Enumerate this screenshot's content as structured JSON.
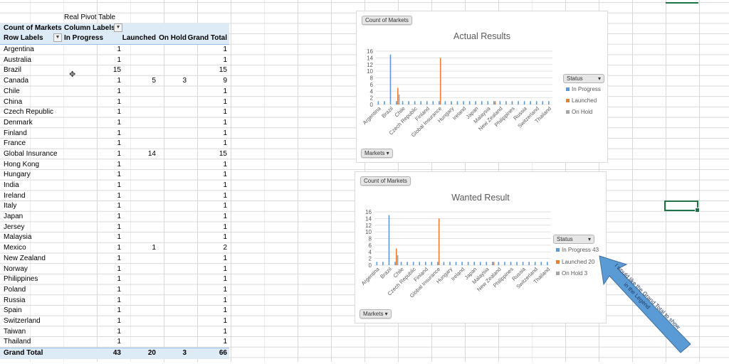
{
  "pivot": {
    "title": "Real Pivot Table",
    "header": {
      "col1": "Count of Markets",
      "col2": "Column Labels"
    },
    "columns": [
      "Row Labels",
      "In Progress",
      "Launched",
      "On Hold",
      "Grand Total"
    ],
    "rows": [
      [
        "Argentina",
        "1",
        "",
        "",
        "1"
      ],
      [
        "Australia",
        "1",
        "",
        "",
        "1"
      ],
      [
        "Brazil",
        "15",
        "",
        "",
        "15"
      ],
      [
        "Canada",
        "1",
        "5",
        "3",
        "9"
      ],
      [
        "Chile",
        "1",
        "",
        "",
        "1"
      ],
      [
        "China",
        "1",
        "",
        "",
        "1"
      ],
      [
        "Czech Republic",
        "1",
        "",
        "",
        "1"
      ],
      [
        "Denmark",
        "1",
        "",
        "",
        "1"
      ],
      [
        "Finland",
        "1",
        "",
        "",
        "1"
      ],
      [
        "France",
        "1",
        "",
        "",
        "1"
      ],
      [
        "Global Insurance",
        "1",
        "14",
        "",
        "15"
      ],
      [
        "Hong Kong",
        "1",
        "",
        "",
        "1"
      ],
      [
        "Hungary",
        "1",
        "",
        "",
        "1"
      ],
      [
        "India",
        "1",
        "",
        "",
        "1"
      ],
      [
        "Ireland",
        "1",
        "",
        "",
        "1"
      ],
      [
        "Italy",
        "1",
        "",
        "",
        "1"
      ],
      [
        "Japan",
        "1",
        "",
        "",
        "1"
      ],
      [
        "Jersey",
        "1",
        "",
        "",
        "1"
      ],
      [
        "Malaysia",
        "1",
        "",
        "",
        "1"
      ],
      [
        "Mexico",
        "1",
        "1",
        "",
        "2"
      ],
      [
        "New Zealand",
        "1",
        "",
        "",
        "1"
      ],
      [
        "Norway",
        "1",
        "",
        "",
        "1"
      ],
      [
        "Philippines",
        "1",
        "",
        "",
        "1"
      ],
      [
        "Poland",
        "1",
        "",
        "",
        "1"
      ],
      [
        "Russia",
        "1",
        "",
        "",
        "1"
      ],
      [
        "Spain",
        "1",
        "",
        "",
        "1"
      ],
      [
        "Switzerland",
        "1",
        "",
        "",
        "1"
      ],
      [
        "Taiwan",
        "1",
        "",
        "",
        "1"
      ],
      [
        "Thailand",
        "1",
        "",
        "",
        "1"
      ]
    ],
    "grand_total": [
      "Grand Total",
      "43",
      "20",
      "3",
      "66"
    ]
  },
  "colors": {
    "in_progress": "#5b9bd5",
    "launched": "#ed7d31",
    "on_hold": "#a5a5a5",
    "callout": "#5b9bd5"
  },
  "chart_data": [
    {
      "type": "bar",
      "title": "Actual Results",
      "field_button": "Count of Markets",
      "axis_button": "Markets",
      "legend_button": "Status",
      "legend": [
        "In Progress",
        "Launched",
        "On Hold"
      ],
      "ylim": [
        0,
        16
      ],
      "yticks": [
        "0",
        "2",
        "4",
        "6",
        "8",
        "10",
        "12",
        "14",
        "16"
      ],
      "xticks": [
        "Argentina",
        "Brazil",
        "Chile",
        "Czech Republic",
        "Finland",
        "Global Insurance",
        "Hungary",
        "Ireland",
        "Japan",
        "Malaysia",
        "New Zealand",
        "Philippines",
        "Russia",
        "Switzerland",
        "Thailand"
      ],
      "categories": [
        "Argentina",
        "Australia",
        "Brazil",
        "Canada",
        "Chile",
        "China",
        "Czech Republic",
        "Denmark",
        "Finland",
        "France",
        "Global Insurance",
        "Hong Kong",
        "Hungary",
        "India",
        "Ireland",
        "Italy",
        "Japan",
        "Jersey",
        "Malaysia",
        "Mexico",
        "New Zealand",
        "Norway",
        "Philippines",
        "Poland",
        "Russia",
        "Spain",
        "Switzerland",
        "Taiwan",
        "Thailand"
      ],
      "series": [
        {
          "name": "In Progress",
          "values": [
            1,
            1,
            15,
            1,
            1,
            1,
            1,
            1,
            1,
            1,
            1,
            1,
            1,
            1,
            1,
            1,
            1,
            1,
            1,
            1,
            1,
            1,
            1,
            1,
            1,
            1,
            1,
            1,
            1
          ]
        },
        {
          "name": "Launched",
          "values": [
            0,
            0,
            0,
            5,
            0,
            0,
            0,
            0,
            0,
            0,
            14,
            0,
            0,
            0,
            0,
            0,
            0,
            0,
            0,
            1,
            0,
            0,
            0,
            0,
            0,
            0,
            0,
            0,
            0
          ]
        },
        {
          "name": "On Hold",
          "values": [
            0,
            0,
            0,
            3,
            0,
            0,
            0,
            0,
            0,
            0,
            0,
            0,
            0,
            0,
            0,
            0,
            0,
            0,
            0,
            0,
            0,
            0,
            0,
            0,
            0,
            0,
            0,
            0,
            0
          ]
        }
      ],
      "grid": true,
      "legend_position": "right"
    },
    {
      "type": "bar",
      "title": "Wanted Result",
      "field_button": "Count of Markets",
      "axis_button": "Markets",
      "legend_button": "Status",
      "legend": [
        "In Progress 43",
        "Launched 20",
        "On Hold 3"
      ],
      "ylim": [
        0,
        16
      ],
      "yticks": [
        "0",
        "2",
        "4",
        "6",
        "8",
        "10",
        "12",
        "14",
        "16"
      ],
      "xticks": [
        "Argentina",
        "Brazil",
        "Chile",
        "Czech Republic",
        "Finland",
        "Global Insurance",
        "Hungary",
        "Ireland",
        "Japan",
        "Malaysia",
        "New Zealand",
        "Philippines",
        "Russia",
        "Switzerland",
        "Thailand"
      ],
      "categories": [
        "Argentina",
        "Australia",
        "Brazil",
        "Canada",
        "Chile",
        "China",
        "Czech Republic",
        "Denmark",
        "Finland",
        "France",
        "Global Insurance",
        "Hong Kong",
        "Hungary",
        "India",
        "Ireland",
        "Italy",
        "Japan",
        "Jersey",
        "Malaysia",
        "Mexico",
        "New Zealand",
        "Norway",
        "Philippines",
        "Poland",
        "Russia",
        "Spain",
        "Switzerland",
        "Taiwan",
        "Thailand"
      ],
      "series": [
        {
          "name": "In Progress",
          "values": [
            1,
            1,
            15,
            1,
            1,
            1,
            1,
            1,
            1,
            1,
            1,
            1,
            1,
            1,
            1,
            1,
            1,
            1,
            1,
            1,
            1,
            1,
            1,
            1,
            1,
            1,
            1,
            1,
            1
          ]
        },
        {
          "name": "Launched",
          "values": [
            0,
            0,
            0,
            5,
            0,
            0,
            0,
            0,
            0,
            0,
            14,
            0,
            0,
            0,
            0,
            0,
            0,
            0,
            0,
            1,
            0,
            0,
            0,
            0,
            0,
            0,
            0,
            0,
            0
          ]
        },
        {
          "name": "On Hold",
          "values": [
            0,
            0,
            0,
            3,
            0,
            0,
            0,
            0,
            0,
            0,
            0,
            0,
            0,
            0,
            0,
            0,
            0,
            0,
            0,
            0,
            0,
            0,
            0,
            0,
            0,
            0,
            0,
            0,
            0
          ]
        }
      ],
      "grid": true,
      "legend_position": "right"
    }
  ],
  "callout": {
    "text": "I would like the Grand Total to show in the Legend"
  }
}
